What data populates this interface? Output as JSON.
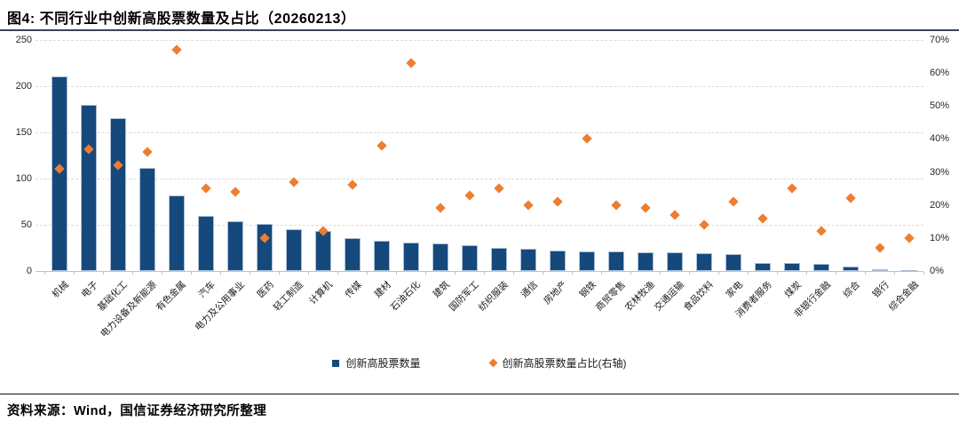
{
  "title": "图4: 不同行业中创新高股票数量及占比（20260213）",
  "source": "资料来源：Wind，国信证券经济研究所整理",
  "legend": {
    "count_label": "创新高股票数量",
    "ratio_label": "创新高股票数量占比(右轴)"
  },
  "colors": {
    "bar": "#15497B",
    "bar_border": "#A9C0D8",
    "point": "#ED7D31",
    "grid": "#DCDCDC",
    "axis": "#C2C2C2",
    "title_rule": "#3A4654",
    "text": "#000000"
  },
  "chart_data": {
    "type": "bar",
    "title": "图4: 不同行业中创新高股票数量及占比（20260213）",
    "xlabel": "",
    "ylabel_left": "创新高股票数量",
    "ylabel_right": "创新高股票数量占比(右轴)",
    "grid": "horizontal-dashed",
    "legend_position": "bottom-center",
    "categories": [
      "机械",
      "电子",
      "基础化工",
      "电力设备及新能源",
      "有色金属",
      "汽车",
      "电力及公用事业",
      "医药",
      "轻工制造",
      "计算机",
      "传媒",
      "建材",
      "石油石化",
      "建筑",
      "国防军工",
      "纺织服装",
      "通信",
      "房地产",
      "钢铁",
      "商贸零售",
      "农林牧渔",
      "交通运输",
      "食品饮料",
      "家电",
      "消费者服务",
      "煤炭",
      "非银行金融",
      "综合",
      "银行",
      "综合金融"
    ],
    "series": [
      {
        "name": "创新高股票数量",
        "type": "bar",
        "axis": "left",
        "values": [
          211,
          180,
          165,
          112,
          82,
          60,
          54,
          51,
          45,
          43,
          36,
          33,
          31,
          30,
          28,
          25,
          24,
          22,
          21,
          21,
          20,
          20,
          19,
          18,
          9,
          9,
          8,
          5,
          2,
          1
        ]
      },
      {
        "name": "创新高股票数量占比(右轴)",
        "type": "scatter",
        "axis": "right",
        "unit": "%",
        "values": [
          31,
          37,
          32,
          36,
          67,
          25,
          24,
          10,
          27,
          12,
          26,
          38,
          63,
          19,
          23,
          25,
          20,
          21,
          40,
          20,
          19,
          17,
          14,
          21,
          16,
          25,
          12,
          22,
          7,
          10
        ]
      }
    ],
    "left_axis": {
      "min": 0,
      "max": 250,
      "ticks": [
        0,
        50,
        100,
        150,
        200,
        250
      ]
    },
    "right_axis": {
      "min": 0,
      "max": 70,
      "ticks": [
        0,
        10,
        20,
        30,
        40,
        50,
        60,
        70
      ],
      "tick_labels": [
        "0%",
        "10%",
        "20%",
        "30%",
        "40%",
        "50%",
        "60%",
        "70%"
      ]
    }
  }
}
